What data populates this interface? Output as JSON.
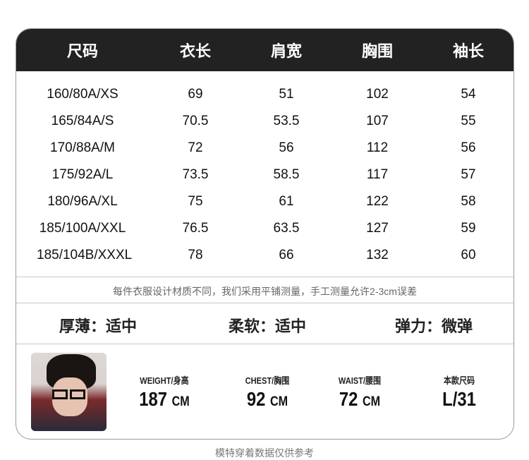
{
  "headers": [
    "尺码",
    "衣长",
    "肩宽",
    "胸围",
    "袖长"
  ],
  "rows": [
    [
      "160/80A/XS",
      "69",
      "51",
      "102",
      "54"
    ],
    [
      "165/84A/S",
      "70.5",
      "53.5",
      "107",
      "55"
    ],
    [
      "170/88A/M",
      "72",
      "56",
      "112",
      "56"
    ],
    [
      "175/92A/L",
      "73.5",
      "58.5",
      "117",
      "57"
    ],
    [
      "180/96A/XL",
      "75",
      "61",
      "122",
      "58"
    ],
    [
      "185/100A/XXL",
      "76.5",
      "63.5",
      "127",
      "59"
    ],
    [
      "185/104B/XXXL",
      "78",
      "66",
      "132",
      "60"
    ]
  ],
  "note": "每件衣服设计材质不同，我们采用平铺测量，手工测量允许2-3cm误差",
  "attributes": [
    "厚薄：适中",
    "柔软：适中",
    "弹力：微弹"
  ],
  "model": {
    "stats": [
      {
        "label": "WEIGHT/身高",
        "value": "187",
        "unit": "CM"
      },
      {
        "label": "CHEST/胸围",
        "value": "92",
        "unit": "CM"
      },
      {
        "label": "WAIST/腰围",
        "value": "72",
        "unit": "CM"
      },
      {
        "label": "本款尺码",
        "value": "L/31",
        "unit": ""
      }
    ]
  },
  "footer": "模特穿着数据仅供参考",
  "colors": {
    "header_bg": "#222222",
    "border": "#9a9a9a"
  }
}
